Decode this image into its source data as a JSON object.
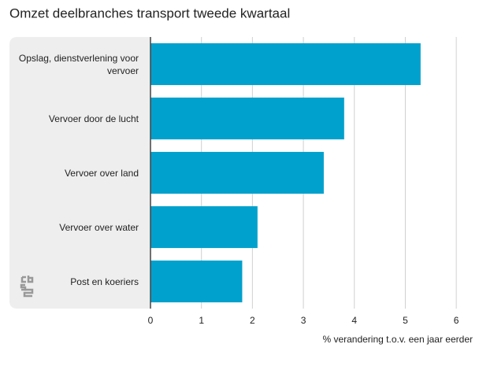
{
  "chart_data": {
    "type": "barh",
    "title": "Omzet deelbranches transport tweede kwartaal",
    "categories": [
      "Opslag, dienstverlening voor vervoer",
      "Vervoer door de lucht",
      "Vervoer over land",
      "Vervoer over water",
      "Post en koeriers"
    ],
    "values": [
      5.3,
      3.8,
      3.4,
      2.1,
      1.8
    ],
    "color": "#00a1cd",
    "xlabel": "% verandering t.o.v. een jaar eerder",
    "xlim": [
      0,
      6.4
    ],
    "xticks": [
      0,
      1,
      2,
      3,
      4,
      5,
      6
    ],
    "grid": true
  }
}
